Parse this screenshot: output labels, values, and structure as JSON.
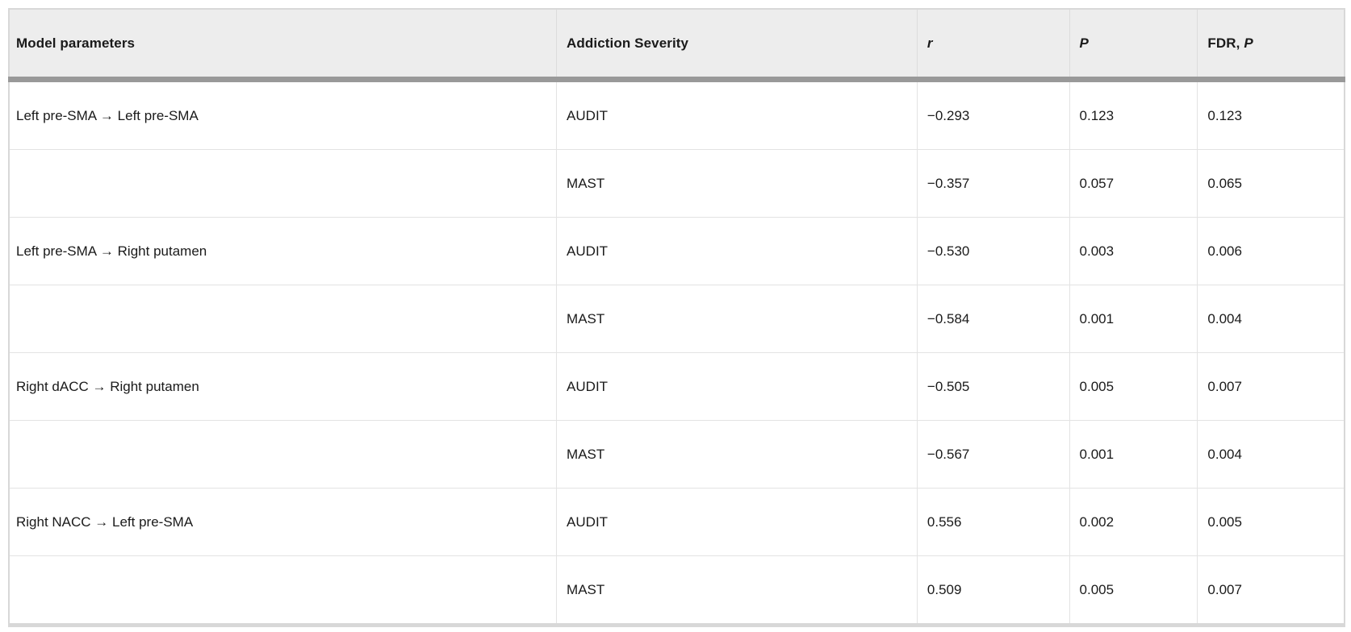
{
  "table": {
    "columns": [
      {
        "label": "Model parameters",
        "italic": ""
      },
      {
        "label": "Addiction Severity",
        "italic": ""
      },
      {
        "label": "",
        "italic": "r"
      },
      {
        "label": "",
        "italic": "P"
      },
      {
        "label": "FDR, ",
        "italic": "P"
      }
    ],
    "rows": [
      {
        "param": "Left pre-SMA → Left pre-SMA",
        "severity": "AUDIT",
        "r": "−0.293",
        "p": "0.123",
        "fdr_p": "0.123"
      },
      {
        "param": "",
        "severity": "MAST",
        "r": "−0.357",
        "p": "0.057",
        "fdr_p": "0.065"
      },
      {
        "param": "Left pre-SMA → Right putamen",
        "severity": "AUDIT",
        "r": "−0.530",
        "p": "0.003",
        "fdr_p": "0.006"
      },
      {
        "param": "",
        "severity": "MAST",
        "r": "−0.584",
        "p": "0.001",
        "fdr_p": "0.004"
      },
      {
        "param": "Right dACC → Right putamen",
        "severity": "AUDIT",
        "r": "−0.505",
        "p": "0.005",
        "fdr_p": "0.007"
      },
      {
        "param": "",
        "severity": "MAST",
        "r": "−0.567",
        "p": "0.001",
        "fdr_p": "0.004"
      },
      {
        "param": "Right NACC → Left pre-SMA",
        "severity": "AUDIT",
        "r": "0.556",
        "p": "0.002",
        "fdr_p": "0.005"
      },
      {
        "param": "",
        "severity": "MAST",
        "r": "0.509",
        "p": "0.005",
        "fdr_p": "0.007"
      }
    ]
  },
  "colors": {
    "header_bg": "#ededed",
    "header_rule": "#999999",
    "grid_line": "#e3e3e3",
    "outer_border": "#d8d8d8",
    "text": "#1a1a1a"
  }
}
